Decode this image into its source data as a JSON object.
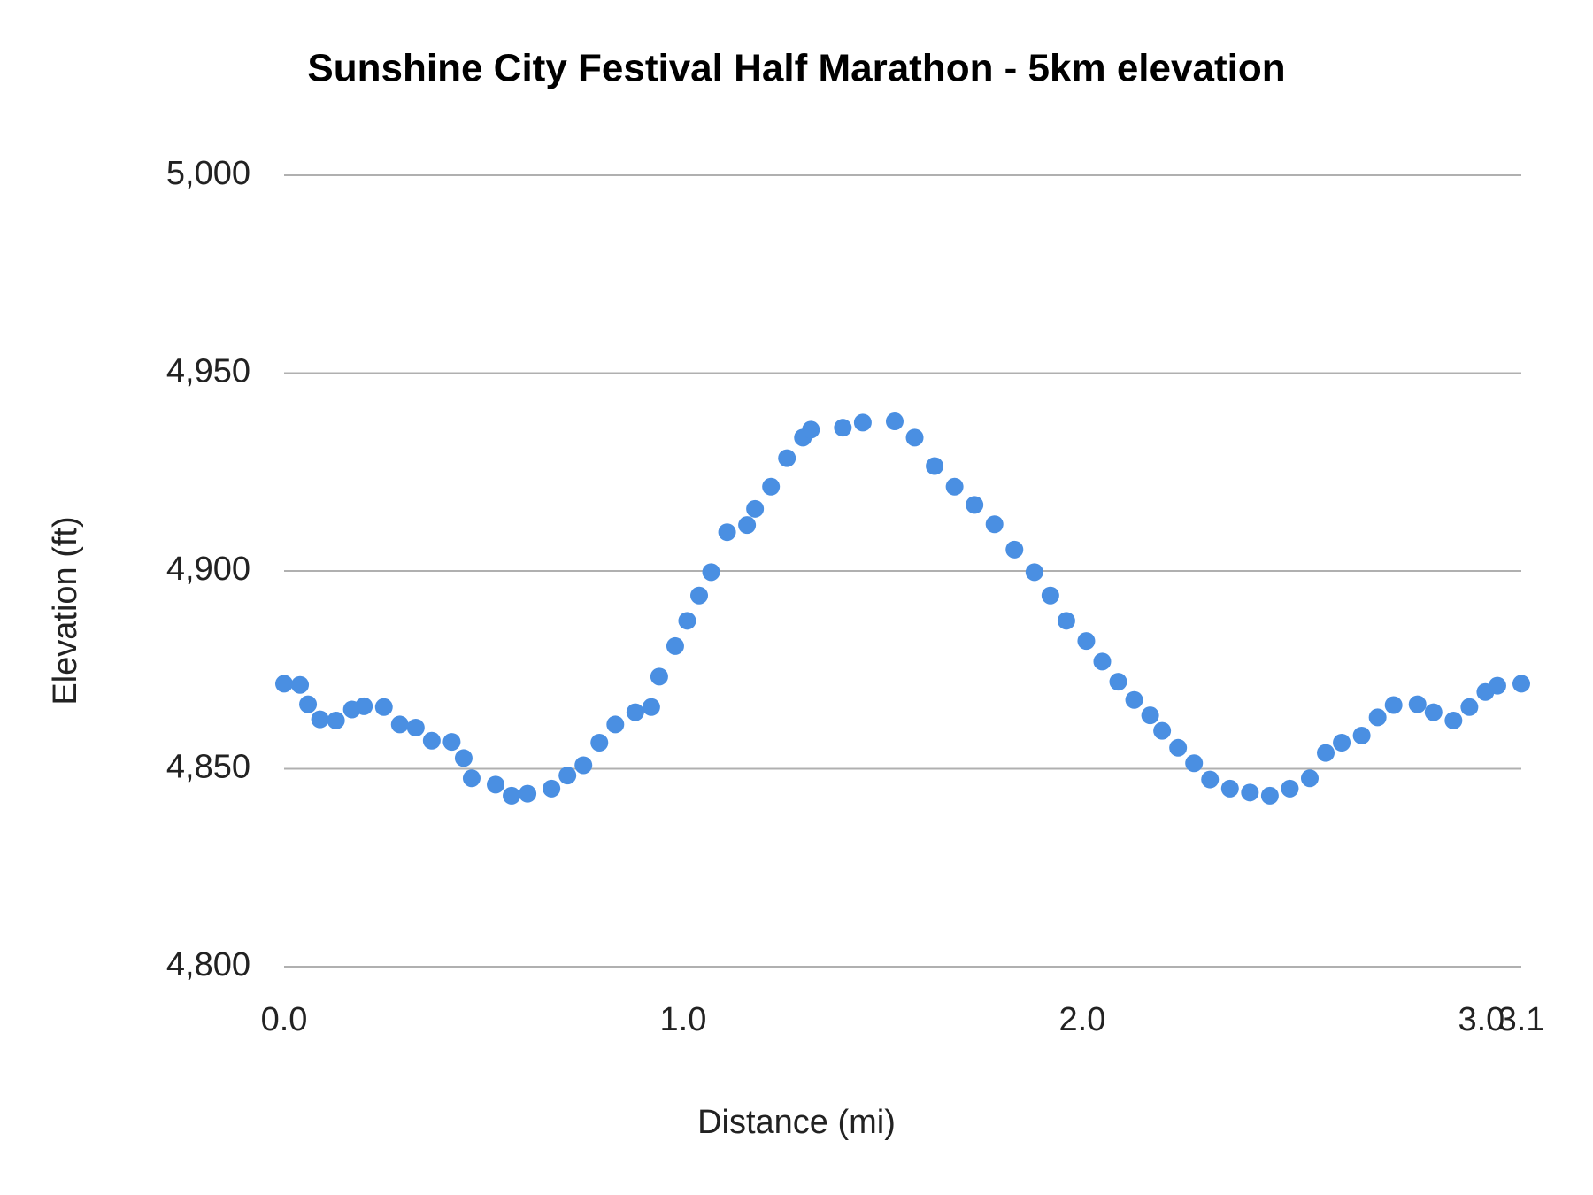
{
  "chart_data": {
    "type": "scatter",
    "title": "Sunshine City Festival Half Marathon - 5km elevation",
    "x_label": "Distance (mi)",
    "y_label": "Elevation (ft)",
    "color": "#4a8fe2",
    "grid": true,
    "xlim": [
      0,
      3.1
    ],
    "xticks": [
      {
        "value": 0,
        "label": "0.0"
      },
      {
        "value": 1,
        "label": "1.0"
      },
      {
        "value": 2,
        "label": "2.0"
      },
      {
        "value": 3,
        "label": "3.0"
      },
      {
        "value": 3.1,
        "label": "3.1"
      }
    ],
    "ylim": [
      4800,
      5000
    ],
    "yticks": [
      {
        "value": 4800,
        "label": "4,800"
      },
      {
        "value": 4850,
        "label": "4,850"
      },
      {
        "value": 4900,
        "label": "4,900"
      },
      {
        "value": 4950,
        "label": "4,950"
      },
      {
        "value": 5000,
        "label": "5,000"
      }
    ],
    "x": [
      0.0,
      0.04,
      0.06,
      0.09,
      0.13,
      0.17,
      0.2,
      0.25,
      0.29,
      0.33,
      0.37,
      0.42,
      0.45,
      0.47,
      0.53,
      0.57,
      0.61,
      0.67,
      0.71,
      0.75,
      0.79,
      0.83,
      0.88,
      0.92,
      0.94,
      0.98,
      1.01,
      1.04,
      1.07,
      1.11,
      1.16,
      1.18,
      1.22,
      1.26,
      1.3,
      1.32,
      1.4,
      1.45,
      1.53,
      1.58,
      1.63,
      1.68,
      1.73,
      1.78,
      1.83,
      1.88,
      1.92,
      1.96,
      2.01,
      2.05,
      2.09,
      2.13,
      2.17,
      2.2,
      2.24,
      2.28,
      2.32,
      2.37,
      2.42,
      2.47,
      2.52,
      2.57,
      2.61,
      2.65,
      2.7,
      2.74,
      2.78,
      2.84,
      2.88,
      2.93,
      2.97,
      3.01,
      3.04,
      3.1
    ],
    "values": [
      4871.5,
      4871.2,
      4866.3,
      4862.5,
      4862.2,
      4865.0,
      4865.8,
      4865.6,
      4861.2,
      4860.4,
      4857.1,
      4856.8,
      4852.7,
      4847.6,
      4846.0,
      4843.2,
      4843.7,
      4845.0,
      4848.3,
      4850.9,
      4856.6,
      4861.2,
      4864.3,
      4865.6,
      4873.3,
      4881.0,
      4887.4,
      4893.8,
      4899.7,
      4909.8,
      4911.6,
      4915.7,
      4921.3,
      4928.5,
      4933.7,
      4935.7,
      4936.2,
      4937.5,
      4937.8,
      4933.7,
      4926.5,
      4921.3,
      4916.7,
      4911.8,
      4905.4,
      4899.7,
      4893.8,
      4887.4,
      4882.3,
      4877.1,
      4872.0,
      4867.4,
      4863.5,
      4859.6,
      4855.3,
      4851.4,
      4847.3,
      4845.0,
      4844.0,
      4843.2,
      4845.0,
      4847.6,
      4854.0,
      4856.6,
      4858.4,
      4863.0,
      4866.1,
      4866.3,
      4864.3,
      4862.2,
      4865.6,
      4869.4,
      4871.0,
      4871.5
    ]
  }
}
